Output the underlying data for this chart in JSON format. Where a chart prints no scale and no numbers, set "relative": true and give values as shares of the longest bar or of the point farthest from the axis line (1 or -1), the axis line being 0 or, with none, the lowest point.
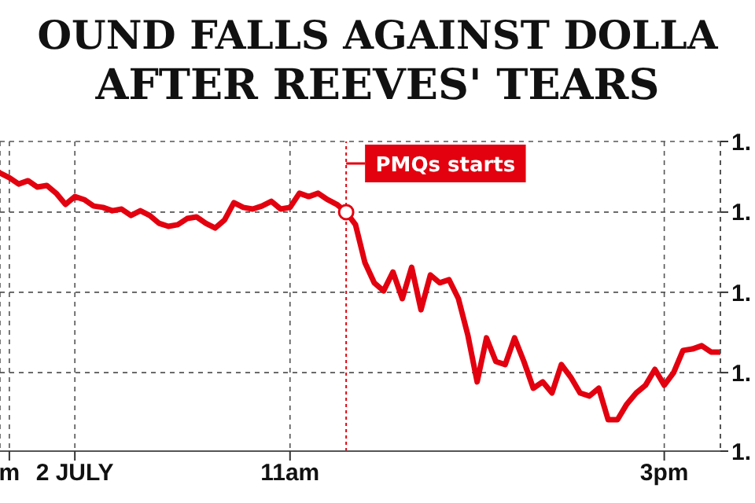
{
  "chart_data": {
    "type": "line",
    "title": "OUND FALLS AGAINST DOLLA",
    "subtitle": "AFTER REEVES' TEARS",
    "relative": true,
    "categories": [
      null,
      "m",
      null,
      null,
      null,
      null,
      null,
      null,
      "2 JULY",
      null,
      null,
      null,
      null,
      null,
      null,
      null,
      null,
      null,
      null,
      null,
      null,
      null,
      null,
      null,
      null,
      null,
      null,
      null,
      null,
      null,
      null,
      "11am",
      null,
      null,
      null,
      null,
      null,
      null,
      null,
      null,
      null,
      null,
      null,
      null,
      null,
      null,
      null,
      null,
      null,
      null,
      null,
      null,
      null,
      null,
      null,
      null,
      null,
      null,
      null,
      null,
      null,
      null,
      null,
      null,
      null,
      null,
      null,
      null,
      null,
      null,
      null,
      "3pm",
      null,
      null,
      null,
      null,
      null,
      null
    ],
    "series": [
      {
        "color": "#e3000f",
        "values": [
          1.0,
          0.983,
          0.96,
          0.972,
          0.949,
          0.955,
          0.927,
          0.887,
          0.915,
          0.904,
          0.881,
          0.876,
          0.864,
          0.87,
          0.847,
          0.864,
          0.847,
          0.819,
          0.808,
          0.814,
          0.836,
          0.842,
          0.819,
          0.802,
          0.831,
          0.893,
          0.876,
          0.87,
          0.881,
          0.898,
          0.87,
          0.876,
          0.927,
          0.915,
          0.927,
          0.904,
          0.887,
          0.859,
          0.814,
          0.678,
          0.605,
          0.576,
          0.644,
          0.548,
          0.661,
          0.508,
          0.633,
          0.605,
          0.616,
          0.548,
          0.418,
          0.249,
          0.407,
          0.322,
          0.311,
          0.407,
          0.322,
          0.226,
          0.249,
          0.209,
          0.311,
          0.266,
          0.209,
          0.198,
          0.226,
          0.113,
          0.113,
          0.169,
          0.209,
          0.237,
          0.294,
          0.237,
          0.282,
          0.362,
          0.367,
          0.379,
          0.356,
          0.356
        ]
      }
    ],
    "annotations": [
      "1.",
      "1.",
      "1.",
      "1.",
      "1.",
      "PMQs starts"
    ],
    "grid": true,
    "line_style": "solid",
    "marker": "none"
  }
}
